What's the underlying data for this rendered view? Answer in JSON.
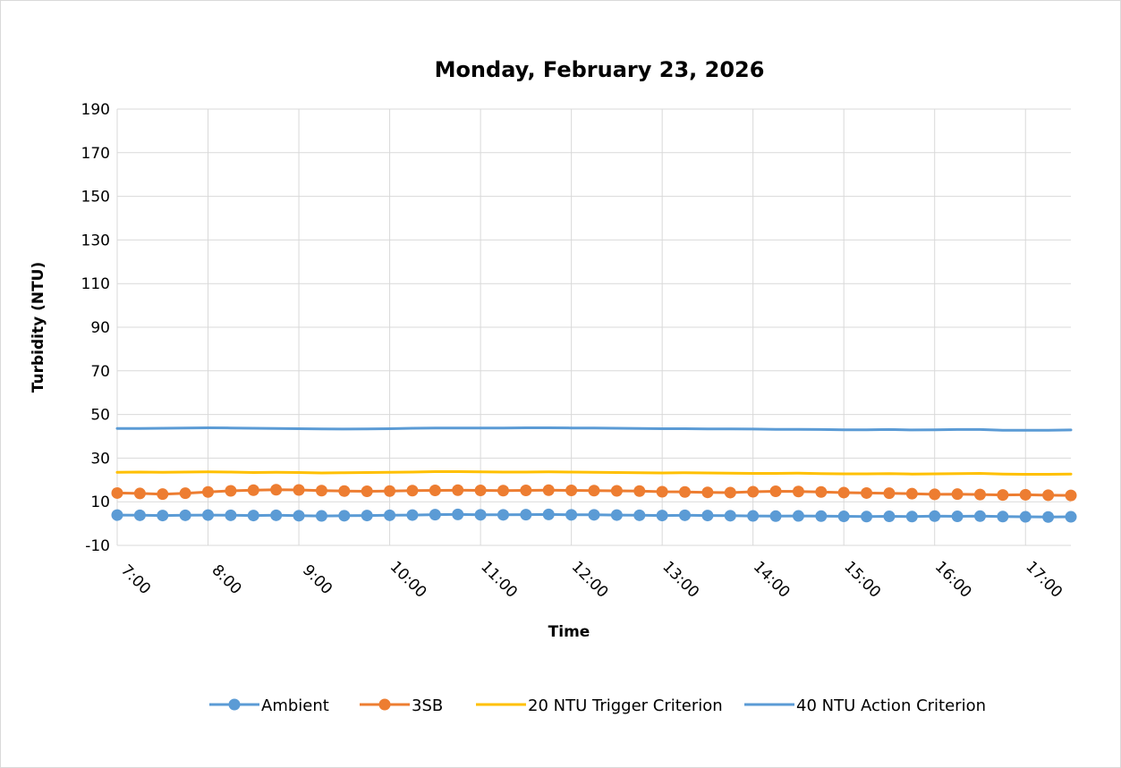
{
  "chart_data": {
    "type": "line",
    "title": "Monday, February 23, 2026",
    "xlabel": "Time",
    "ylabel": "Turbidity (NTU)",
    "ylim": [
      -10,
      190
    ],
    "yticks": [
      -10,
      10,
      30,
      50,
      70,
      90,
      110,
      130,
      150,
      170,
      190
    ],
    "xticks": [
      "7:00",
      "8:00",
      "9:00",
      "10:00",
      "11:00",
      "12:00",
      "13:00",
      "14:00",
      "15:00",
      "16:00",
      "17:00"
    ],
    "xlim": [
      "7:00",
      "17:30"
    ],
    "grid": true,
    "legend_position": "bottom",
    "x": [
      "7:00",
      "7:15",
      "7:30",
      "7:45",
      "8:00",
      "8:15",
      "8:30",
      "8:45",
      "9:00",
      "9:15",
      "9:30",
      "9:45",
      "10:00",
      "10:15",
      "10:30",
      "10:45",
      "11:00",
      "11:15",
      "11:30",
      "11:45",
      "12:00",
      "12:15",
      "12:30",
      "12:45",
      "13:00",
      "13:15",
      "13:30",
      "13:45",
      "14:00",
      "14:15",
      "14:30",
      "14:45",
      "15:00",
      "15:15",
      "15:30",
      "15:45",
      "16:00",
      "16:15",
      "16:30",
      "16:45",
      "17:00",
      "17:15",
      "17:30"
    ],
    "series": [
      {
        "name": "Ambient",
        "color": "#5B9BD5",
        "marker": "circle",
        "values": [
          3.9,
          3.8,
          3.7,
          3.8,
          3.9,
          3.8,
          3.7,
          3.8,
          3.6,
          3.5,
          3.6,
          3.7,
          3.8,
          3.9,
          4.1,
          4.2,
          4.0,
          4.0,
          4.1,
          4.2,
          4.0,
          4.0,
          3.9,
          3.8,
          3.7,
          3.8,
          3.7,
          3.6,
          3.5,
          3.4,
          3.5,
          3.4,
          3.3,
          3.2,
          3.3,
          3.2,
          3.4,
          3.3,
          3.4,
          3.2,
          3.1,
          3.0,
          3.1
        ]
      },
      {
        "name": "3SB",
        "color": "#ED7D31",
        "marker": "circle",
        "values": [
          14.0,
          13.8,
          13.5,
          13.9,
          14.5,
          15.0,
          15.3,
          15.5,
          15.4,
          15.1,
          14.9,
          14.8,
          14.9,
          15.1,
          15.2,
          15.3,
          15.2,
          15.1,
          15.2,
          15.3,
          15.2,
          15.1,
          15.0,
          14.9,
          14.6,
          14.5,
          14.3,
          14.2,
          14.6,
          14.8,
          14.7,
          14.5,
          14.2,
          14.0,
          13.9,
          13.7,
          13.4,
          13.5,
          13.3,
          13.1,
          13.2,
          13.0,
          12.9
        ]
      },
      {
        "name": "20 NTU Trigger Criterion",
        "color": "#FFC000",
        "marker": "none",
        "values": [
          23.5,
          23.6,
          23.5,
          23.6,
          23.7,
          23.6,
          23.4,
          23.5,
          23.4,
          23.2,
          23.3,
          23.4,
          23.5,
          23.6,
          23.8,
          23.8,
          23.7,
          23.6,
          23.6,
          23.7,
          23.6,
          23.5,
          23.4,
          23.3,
          23.2,
          23.3,
          23.2,
          23.1,
          23.0,
          23.0,
          23.1,
          22.9,
          22.8,
          22.8,
          22.9,
          22.7,
          22.8,
          22.9,
          23.0,
          22.7,
          22.6,
          22.6,
          22.7
        ]
      },
      {
        "name": "40 NTU Action Criterion",
        "color": "#5B9BD5",
        "marker": "none",
        "values": [
          43.6,
          43.6,
          43.7,
          43.8,
          43.9,
          43.8,
          43.7,
          43.6,
          43.5,
          43.4,
          43.3,
          43.4,
          43.5,
          43.7,
          43.8,
          43.8,
          43.8,
          43.8,
          43.9,
          43.9,
          43.8,
          43.8,
          43.7,
          43.6,
          43.5,
          43.5,
          43.4,
          43.4,
          43.3,
          43.2,
          43.2,
          43.1,
          43.0,
          43.0,
          43.1,
          42.9,
          43.0,
          43.1,
          43.1,
          42.8,
          42.8,
          42.8,
          42.9
        ]
      }
    ]
  }
}
